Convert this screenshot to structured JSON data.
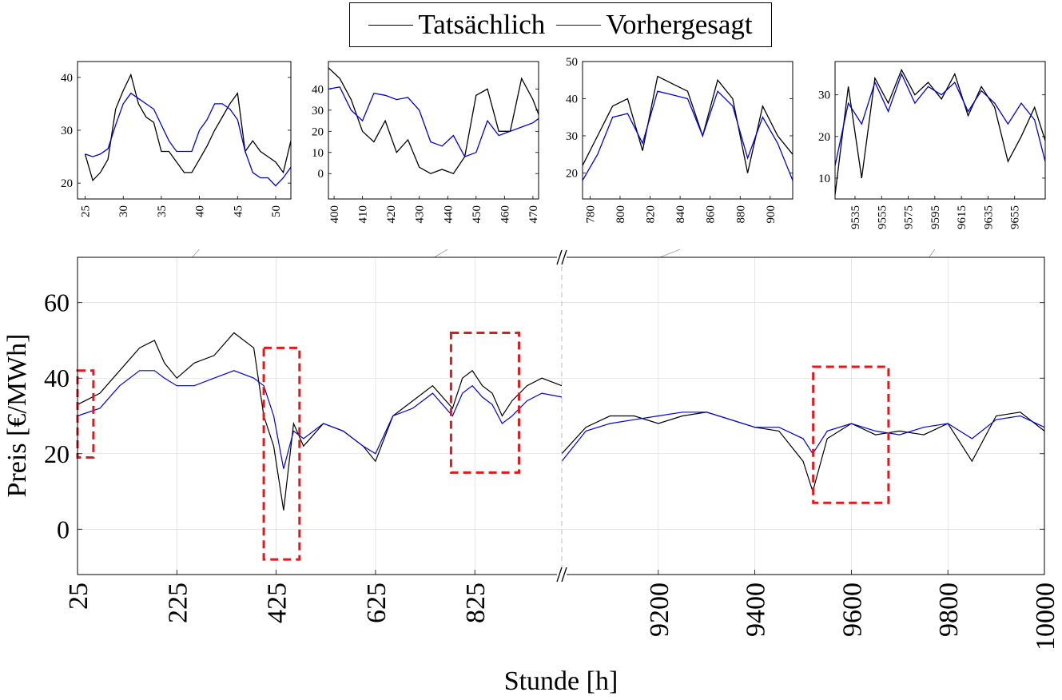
{
  "colors": {
    "actual": "#000000",
    "predicted": "#0000dd",
    "highlight": "#e8151b",
    "grid": "#d6d6d6"
  },
  "chart_data": {
    "type": "line",
    "legend": {
      "position": "top-center",
      "entries": [
        "Tatsächlich",
        "Vorhergesagt"
      ]
    },
    "main": {
      "xlabel": "Stunde [h]",
      "ylabel": "Preis [€/MWh]",
      "ylim": [
        -12,
        72
      ],
      "yticks": [
        0,
        20,
        40,
        60
      ],
      "grid": true,
      "axis_break": true,
      "segments": [
        {
          "range": [
            25,
            1000
          ],
          "xticks": [
            25,
            225,
            425,
            625,
            825
          ]
        },
        {
          "range": [
            9000,
            10000
          ],
          "xticks": [
            9200,
            9400,
            9600,
            9800,
            10000
          ]
        }
      ],
      "highlight_boxes": [
        {
          "x": [
            25,
            57
          ],
          "y": [
            19,
            42
          ]
        },
        {
          "x": [
            400,
            472
          ],
          "y": [
            -8,
            48
          ]
        },
        {
          "x": [
            777,
            914
          ],
          "y": [
            15,
            52
          ]
        },
        {
          "x": [
            9521,
            9677
          ],
          "y": [
            7,
            43
          ]
        }
      ],
      "series": [
        {
          "name": "Tatsächlich",
          "x": [
            25,
            70,
            110,
            150,
            180,
            200,
            225,
            260,
            300,
            340,
            380,
            400,
            420,
            440,
            460,
            480,
            520,
            560,
            600,
            625,
            660,
            700,
            740,
            780,
            800,
            820,
            840,
            860,
            880,
            900,
            930,
            960,
            1000
          ],
          "y": [
            33,
            36,
            42,
            48,
            50,
            44,
            40,
            44,
            46,
            52,
            48,
            30,
            22,
            5,
            28,
            22,
            28,
            26,
            22,
            18,
            30,
            34,
            38,
            32,
            40,
            42,
            38,
            36,
            30,
            34,
            38,
            40,
            38
          ]
        },
        {
          "name": "Vorhergesagt",
          "x": [
            25,
            70,
            110,
            150,
            180,
            200,
            225,
            260,
            300,
            340,
            380,
            400,
            420,
            440,
            460,
            480,
            520,
            560,
            600,
            625,
            660,
            700,
            740,
            780,
            800,
            820,
            840,
            860,
            880,
            900,
            930,
            960,
            1000
          ],
          "y": [
            30,
            32,
            38,
            42,
            42,
            40,
            38,
            38,
            40,
            42,
            40,
            38,
            30,
            16,
            26,
            24,
            28,
            26,
            22,
            20,
            30,
            32,
            36,
            30,
            36,
            38,
            35,
            33,
            28,
            30,
            34,
            36,
            35
          ]
        },
        {
          "name": "Tatsächlich (2)",
          "x": [
            9000,
            9050,
            9100,
            9150,
            9200,
            9250,
            9300,
            9350,
            9400,
            9450,
            9500,
            9520,
            9550,
            9600,
            9650,
            9700,
            9750,
            9800,
            9850,
            9900,
            9950,
            10000
          ],
          "y": [
            20,
            27,
            30,
            30,
            28,
            30,
            31,
            29,
            27,
            26,
            18,
            10,
            24,
            28,
            25,
            26,
            25,
            28,
            18,
            30,
            31,
            26
          ]
        },
        {
          "name": "Vorhergesagt (2)",
          "x": [
            9000,
            9050,
            9100,
            9150,
            9200,
            9250,
            9300,
            9350,
            9400,
            9450,
            9500,
            9520,
            9550,
            9600,
            9650,
            9700,
            9750,
            9800,
            9850,
            9900,
            9950,
            10000
          ],
          "y": [
            18,
            26,
            28,
            29,
            30,
            31,
            31,
            29,
            27,
            27,
            24,
            20,
            26,
            28,
            26,
            25,
            27,
            28,
            24,
            29,
            30,
            27
          ]
        }
      ]
    },
    "insets": [
      {
        "xlim": [
          24,
          52
        ],
        "ylim": [
          17,
          43
        ],
        "xticks": [
          25,
          30,
          35,
          40,
          45,
          50
        ],
        "yticks": [
          20,
          30,
          40
        ],
        "actual_x": [
          25,
          26,
          27,
          28,
          29,
          30,
          31,
          32,
          33,
          34,
          35,
          36,
          37,
          38,
          39,
          40,
          41,
          42,
          43,
          44,
          45,
          46,
          47,
          48,
          49,
          50,
          51,
          52
        ],
        "actual_y": [
          25.5,
          20.5,
          22,
          24.5,
          34,
          37.5,
          40.5,
          35,
          32.5,
          31.5,
          26,
          26,
          24,
          22,
          22,
          24.5,
          27,
          30,
          32.5,
          35,
          37,
          26,
          28,
          26,
          25,
          24,
          22,
          28
        ],
        "pred_x": [
          25,
          26,
          27,
          28,
          29,
          30,
          31,
          32,
          33,
          34,
          35,
          36,
          37,
          38,
          39,
          40,
          41,
          42,
          43,
          44,
          45,
          46,
          47,
          48,
          49,
          50,
          51,
          52
        ],
        "pred_y": [
          25.5,
          25,
          25.5,
          26.5,
          31,
          35,
          37,
          36,
          35,
          34,
          31,
          28,
          26,
          26,
          26,
          30,
          32,
          35,
          35,
          34,
          32,
          26,
          22,
          21,
          21,
          19.5,
          21,
          23
        ]
      },
      {
        "xlim": [
          398,
          472
        ],
        "ylim": [
          -12,
          53
        ],
        "xticks": [
          400,
          410,
          420,
          430,
          440,
          450,
          460,
          470
        ],
        "yticks": [
          0,
          10,
          20,
          30,
          40
        ],
        "actual_x": [
          398,
          402,
          406,
          410,
          414,
          418,
          422,
          426,
          430,
          434,
          438,
          442,
          446,
          450,
          454,
          458,
          462,
          466,
          470,
          472
        ],
        "actual_y": [
          50,
          45,
          35,
          20,
          15,
          25,
          10,
          16,
          3,
          0,
          2,
          0,
          8,
          37,
          40,
          20,
          20,
          45,
          35,
          28
        ],
        "pred_x": [
          398,
          402,
          406,
          410,
          414,
          418,
          422,
          426,
          430,
          434,
          438,
          442,
          446,
          450,
          454,
          458,
          462,
          466,
          470,
          472
        ],
        "pred_y": [
          40,
          41,
          30,
          25,
          38,
          37,
          35,
          36,
          30,
          15,
          13,
          18,
          8,
          10,
          25,
          18,
          20,
          22,
          24,
          26
        ]
      },
      {
        "xlim": [
          775,
          915
        ],
        "ylim": [
          13,
          50
        ],
        "xticks": [
          780,
          800,
          820,
          840,
          860,
          880,
          900
        ],
        "yticks": [
          20,
          30,
          40,
          50
        ],
        "actual_x": [
          775,
          785,
          795,
          805,
          815,
          825,
          835,
          845,
          855,
          865,
          875,
          885,
          895,
          905,
          915
        ],
        "actual_y": [
          22,
          30,
          38,
          40,
          26,
          46,
          44,
          42,
          30,
          45,
          40,
          20,
          38,
          30,
          25
        ],
        "pred_x": [
          775,
          785,
          795,
          805,
          815,
          825,
          835,
          845,
          855,
          865,
          875,
          885,
          895,
          905,
          915
        ],
        "pred_y": [
          18,
          25,
          35,
          36,
          28,
          42,
          41,
          40,
          30,
          42,
          38,
          24,
          35,
          28,
          18
        ]
      },
      {
        "xlim": [
          9520,
          9678
        ],
        "ylim": [
          5,
          38
        ],
        "xticks": [
          9535,
          9555,
          9575,
          9595,
          9615,
          9635,
          9655
        ],
        "yticks": [
          10,
          20,
          30
        ],
        "actual_x": [
          9520,
          9530,
          9540,
          9550,
          9560,
          9570,
          9580,
          9590,
          9600,
          9610,
          9620,
          9630,
          9640,
          9650,
          9660,
          9670,
          9678
        ],
        "actual_y": [
          6,
          32,
          10,
          34,
          28,
          36,
          30,
          33,
          29,
          35,
          25,
          32,
          27,
          14,
          20,
          27,
          19
        ],
        "pred_x": [
          9520,
          9530,
          9540,
          9550,
          9560,
          9570,
          9580,
          9590,
          9600,
          9610,
          9620,
          9630,
          9640,
          9650,
          9660,
          9670,
          9678
        ],
        "pred_y": [
          13,
          28,
          23,
          33,
          26,
          35,
          28,
          32,
          30,
          33,
          26,
          31,
          28,
          23,
          28,
          24,
          14
        ]
      }
    ]
  }
}
